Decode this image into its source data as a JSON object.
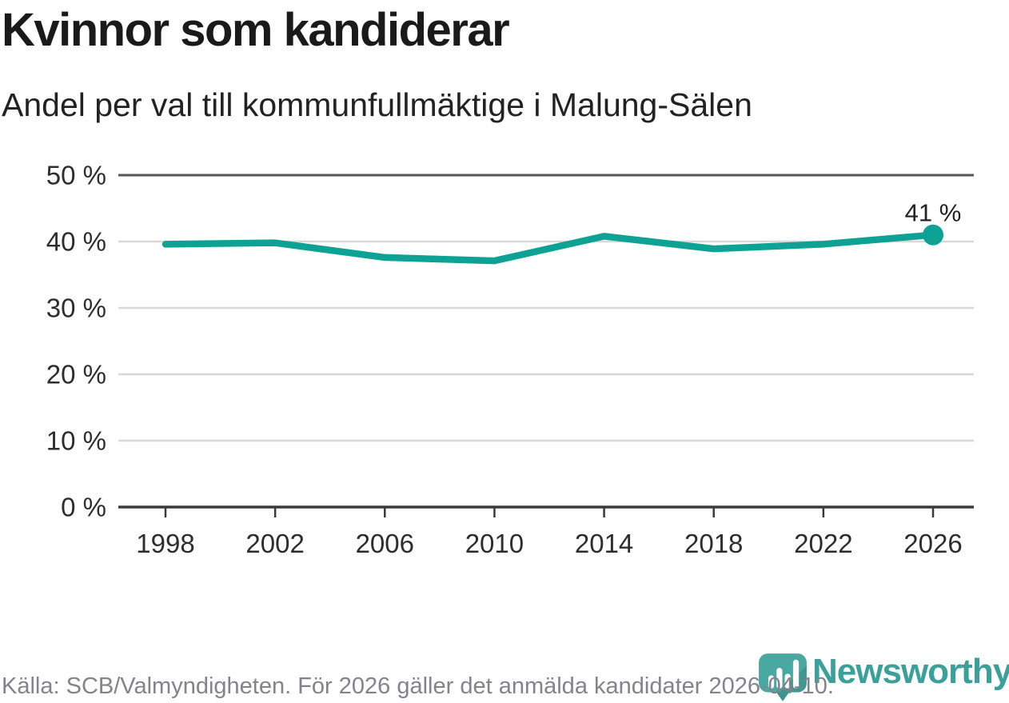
{
  "header": {
    "title": "Kvinnor som kandiderar",
    "subtitle": "Andel per val till kommunfullmäktige i Malung-Sälen"
  },
  "chart_data": {
    "type": "line",
    "title": "Kvinnor som kandiderar",
    "subtitle": "Andel per val till kommunfullmäktige i Malung-Sälen",
    "categories": [
      "1998",
      "2002",
      "2006",
      "2010",
      "2014",
      "2018",
      "2022",
      "2026"
    ],
    "values": [
      39.6,
      39.8,
      37.6,
      37.1,
      40.8,
      38.9,
      39.6,
      41
    ],
    "unit": "%",
    "ylim": [
      0,
      50
    ],
    "y_ticks": [
      50,
      40,
      30,
      20,
      10,
      0
    ],
    "y_tick_labels": [
      "50 %",
      "40 %",
      "30 %",
      "20 %",
      "10 %",
      "0 %"
    ],
    "end_label": "41 %",
    "grid": true,
    "legend": "none",
    "line_color": "#0EA294"
  },
  "footer": {
    "source": "Källa: SCB/Valmyndigheten. För 2026 gäller det anmälda kandidater 2026-04-10.",
    "brand": "Newsworthy"
  },
  "colors": {
    "line": "#0EA294",
    "brand_text": "#3BA09A",
    "pin_fill": "#4AA8A2",
    "pin_point": "#3E958F",
    "grid_light": "#D8D8D8",
    "grid_top": "#55565A",
    "axis": "#3A3A3E",
    "text_dark": "#222222",
    "text_muted": "#84838B"
  }
}
